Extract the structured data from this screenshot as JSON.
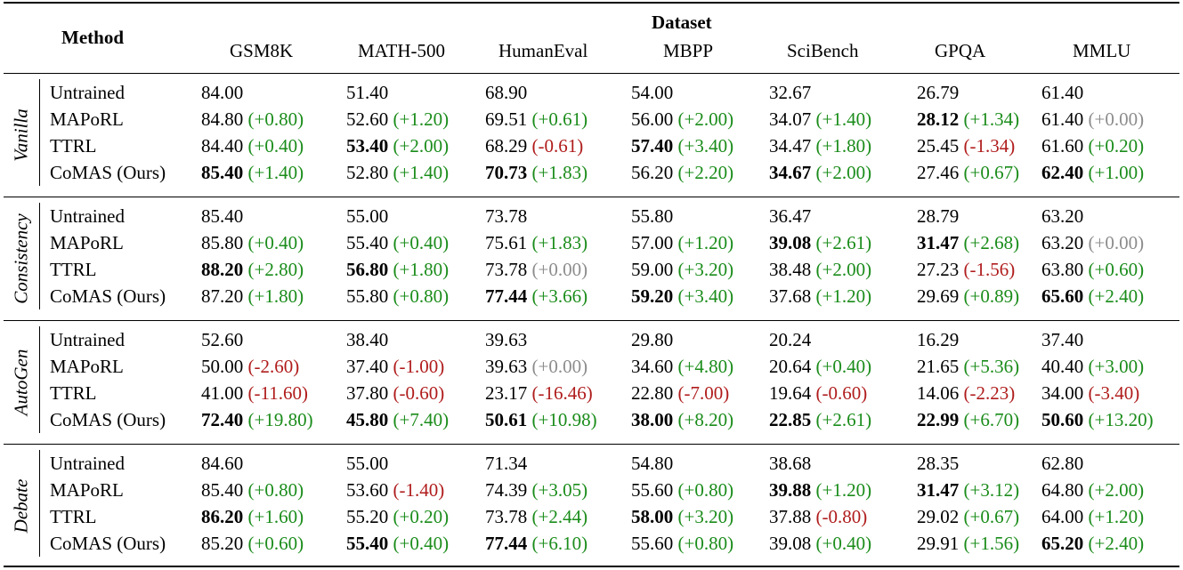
{
  "header": {
    "method": "Method",
    "dataset": "Dataset",
    "columns": [
      "GSM8K",
      "MATH-500",
      "HumanEval",
      "MBPP",
      "SciBench",
      "GPQA",
      "MMLU"
    ]
  },
  "groups": [
    {
      "name": "Vanilla",
      "rows": [
        {
          "method": "Untrained",
          "cells": [
            {
              "v": "84.00"
            },
            {
              "v": "51.40"
            },
            {
              "v": "68.90"
            },
            {
              "v": "54.00"
            },
            {
              "v": "32.67"
            },
            {
              "v": "26.79"
            },
            {
              "v": "61.40"
            }
          ]
        },
        {
          "method": "MAPoRL",
          "cells": [
            {
              "v": "84.80",
              "d": "(+0.80)",
              "s": "pos"
            },
            {
              "v": "52.60",
              "d": "(+1.20)",
              "s": "pos"
            },
            {
              "v": "69.51",
              "d": "(+0.61)",
              "s": "pos"
            },
            {
              "v": "56.00",
              "d": "(+2.00)",
              "s": "pos"
            },
            {
              "v": "34.07",
              "d": "(+1.40)",
              "s": "pos"
            },
            {
              "v": "28.12",
              "b": true,
              "d": "(+1.34)",
              "s": "pos"
            },
            {
              "v": "61.40",
              "d": "(+0.00)",
              "s": "zero"
            }
          ]
        },
        {
          "method": "TTRL",
          "cells": [
            {
              "v": "84.40",
              "d": "(+0.40)",
              "s": "pos"
            },
            {
              "v": "53.40",
              "b": true,
              "d": "(+2.00)",
              "s": "pos"
            },
            {
              "v": "68.29",
              "d": "(-0.61)",
              "s": "neg"
            },
            {
              "v": "57.40",
              "b": true,
              "d": "(+3.40)",
              "s": "pos"
            },
            {
              "v": "34.47",
              "d": "(+1.80)",
              "s": "pos"
            },
            {
              "v": "25.45",
              "d": "(-1.34)",
              "s": "neg"
            },
            {
              "v": "61.60",
              "d": "(+0.20)",
              "s": "pos"
            }
          ]
        },
        {
          "method": "CoMAS (Ours)",
          "cells": [
            {
              "v": "85.40",
              "b": true,
              "d": "(+1.40)",
              "s": "pos"
            },
            {
              "v": "52.80",
              "d": "(+1.40)",
              "s": "pos"
            },
            {
              "v": "70.73",
              "b": true,
              "d": "(+1.83)",
              "s": "pos"
            },
            {
              "v": "56.20",
              "d": "(+2.20)",
              "s": "pos"
            },
            {
              "v": "34.67",
              "b": true,
              "d": "(+2.00)",
              "s": "pos"
            },
            {
              "v": "27.46",
              "d": "(+0.67)",
              "s": "pos"
            },
            {
              "v": "62.40",
              "b": true,
              "d": "(+1.00)",
              "s": "pos"
            }
          ]
        }
      ]
    },
    {
      "name": "Consistency",
      "rows": [
        {
          "method": "Untrained",
          "cells": [
            {
              "v": "85.40"
            },
            {
              "v": "55.00"
            },
            {
              "v": "73.78"
            },
            {
              "v": "55.80"
            },
            {
              "v": "36.47"
            },
            {
              "v": "28.79"
            },
            {
              "v": "63.20"
            }
          ]
        },
        {
          "method": "MAPoRL",
          "cells": [
            {
              "v": "85.80",
              "d": "(+0.40)",
              "s": "pos"
            },
            {
              "v": "55.40",
              "d": "(+0.40)",
              "s": "pos"
            },
            {
              "v": "75.61",
              "d": "(+1.83)",
              "s": "pos"
            },
            {
              "v": "57.00",
              "d": "(+1.20)",
              "s": "pos"
            },
            {
              "v": "39.08",
              "b": true,
              "d": "(+2.61)",
              "s": "pos"
            },
            {
              "v": "31.47",
              "b": true,
              "d": "(+2.68)",
              "s": "pos"
            },
            {
              "v": "63.20",
              "d": "(+0.00)",
              "s": "zero"
            }
          ]
        },
        {
          "method": "TTRL",
          "cells": [
            {
              "v": "88.20",
              "b": true,
              "d": "(+2.80)",
              "s": "pos"
            },
            {
              "v": "56.80",
              "b": true,
              "d": "(+1.80)",
              "s": "pos"
            },
            {
              "v": "73.78",
              "d": "(+0.00)",
              "s": "zero"
            },
            {
              "v": "59.00",
              "d": "(+3.20)",
              "s": "pos"
            },
            {
              "v": "38.48",
              "d": "(+2.00)",
              "s": "pos"
            },
            {
              "v": "27.23",
              "d": "(-1.56)",
              "s": "neg"
            },
            {
              "v": "63.80",
              "d": "(+0.60)",
              "s": "pos"
            }
          ]
        },
        {
          "method": "CoMAS (Ours)",
          "cells": [
            {
              "v": "87.20",
              "d": "(+1.80)",
              "s": "pos"
            },
            {
              "v": "55.80",
              "d": "(+0.80)",
              "s": "pos"
            },
            {
              "v": "77.44",
              "b": true,
              "d": "(+3.66)",
              "s": "pos"
            },
            {
              "v": "59.20",
              "b": true,
              "d": "(+3.40)",
              "s": "pos"
            },
            {
              "v": "37.68",
              "d": "(+1.20)",
              "s": "pos"
            },
            {
              "v": "29.69",
              "d": "(+0.89)",
              "s": "pos"
            },
            {
              "v": "65.60",
              "b": true,
              "d": "(+2.40)",
              "s": "pos"
            }
          ]
        }
      ]
    },
    {
      "name": "AutoGen",
      "rows": [
        {
          "method": "Untrained",
          "cells": [
            {
              "v": "52.60"
            },
            {
              "v": "38.40"
            },
            {
              "v": "39.63"
            },
            {
              "v": "29.80"
            },
            {
              "v": "20.24"
            },
            {
              "v": "16.29"
            },
            {
              "v": "37.40"
            }
          ]
        },
        {
          "method": "MAPoRL",
          "cells": [
            {
              "v": "50.00",
              "d": "(-2.60)",
              "s": "neg"
            },
            {
              "v": "37.40",
              "d": "(-1.00)",
              "s": "neg"
            },
            {
              "v": "39.63",
              "d": "(+0.00)",
              "s": "zero"
            },
            {
              "v": "34.60",
              "d": "(+4.80)",
              "s": "pos"
            },
            {
              "v": "20.64",
              "d": "(+0.40)",
              "s": "pos"
            },
            {
              "v": "21.65",
              "d": "(+5.36)",
              "s": "pos"
            },
            {
              "v": "40.40",
              "d": "(+3.00)",
              "s": "pos"
            }
          ]
        },
        {
          "method": "TTRL",
          "cells": [
            {
              "v": "41.00",
              "d": "(-11.60)",
              "s": "neg"
            },
            {
              "v": "37.80",
              "d": "(-0.60)",
              "s": "neg"
            },
            {
              "v": "23.17",
              "d": "(-16.46)",
              "s": "neg"
            },
            {
              "v": "22.80",
              "d": "(-7.00)",
              "s": "neg"
            },
            {
              "v": "19.64",
              "d": "(-0.60)",
              "s": "neg"
            },
            {
              "v": "14.06",
              "d": "(-2.23)",
              "s": "neg"
            },
            {
              "v": "34.00",
              "d": "(-3.40)",
              "s": "neg"
            }
          ]
        },
        {
          "method": "CoMAS (Ours)",
          "cells": [
            {
              "v": "72.40",
              "b": true,
              "d": "(+19.80)",
              "s": "pos"
            },
            {
              "v": "45.80",
              "b": true,
              "d": "(+7.40)",
              "s": "pos"
            },
            {
              "v": "50.61",
              "b": true,
              "d": "(+10.98)",
              "s": "pos"
            },
            {
              "v": "38.00",
              "b": true,
              "d": "(+8.20)",
              "s": "pos"
            },
            {
              "v": "22.85",
              "b": true,
              "d": "(+2.61)",
              "s": "pos"
            },
            {
              "v": "22.99",
              "b": true,
              "d": "(+6.70)",
              "s": "pos"
            },
            {
              "v": "50.60",
              "b": true,
              "d": "(+13.20)",
              "s": "pos"
            }
          ]
        }
      ]
    },
    {
      "name": "Debate",
      "rows": [
        {
          "method": "Untrained",
          "cells": [
            {
              "v": "84.60"
            },
            {
              "v": "55.00"
            },
            {
              "v": "71.34"
            },
            {
              "v": "54.80"
            },
            {
              "v": "38.68"
            },
            {
              "v": "28.35"
            },
            {
              "v": "62.80"
            }
          ]
        },
        {
          "method": "MAPoRL",
          "cells": [
            {
              "v": "85.40",
              "d": "(+0.80)",
              "s": "pos"
            },
            {
              "v": "53.60",
              "d": "(-1.40)",
              "s": "neg"
            },
            {
              "v": "74.39",
              "d": "(+3.05)",
              "s": "pos"
            },
            {
              "v": "55.60",
              "d": "(+0.80)",
              "s": "pos"
            },
            {
              "v": "39.88",
              "b": true,
              "d": "(+1.20)",
              "s": "pos"
            },
            {
              "v": "31.47",
              "b": true,
              "d": "(+3.12)",
              "s": "pos"
            },
            {
              "v": "64.80",
              "d": "(+2.00)",
              "s": "pos"
            }
          ]
        },
        {
          "method": "TTRL",
          "cells": [
            {
              "v": "86.20",
              "b": true,
              "d": "(+1.60)",
              "s": "pos"
            },
            {
              "v": "55.20",
              "d": "(+0.20)",
              "s": "pos"
            },
            {
              "v": "73.78",
              "d": "(+2.44)",
              "s": "pos"
            },
            {
              "v": "58.00",
              "b": true,
              "d": "(+3.20)",
              "s": "pos"
            },
            {
              "v": "37.88",
              "d": "(-0.80)",
              "s": "neg"
            },
            {
              "v": "29.02",
              "d": "(+0.67)",
              "s": "pos"
            },
            {
              "v": "64.00",
              "d": "(+1.20)",
              "s": "pos"
            }
          ]
        },
        {
          "method": "CoMAS (Ours)",
          "cells": [
            {
              "v": "85.20",
              "d": "(+0.60)",
              "s": "pos"
            },
            {
              "v": "55.40",
              "b": true,
              "d": "(+0.40)",
              "s": "pos"
            },
            {
              "v": "77.44",
              "b": true,
              "d": "(+6.10)",
              "s": "pos"
            },
            {
              "v": "55.60",
              "d": "(+0.80)",
              "s": "pos"
            },
            {
              "v": "39.08",
              "d": "(+0.40)",
              "s": "pos"
            },
            {
              "v": "29.91",
              "d": "(+1.56)",
              "s": "pos"
            },
            {
              "v": "65.20",
              "b": true,
              "d": "(+2.40)",
              "s": "pos"
            }
          ]
        }
      ]
    }
  ]
}
